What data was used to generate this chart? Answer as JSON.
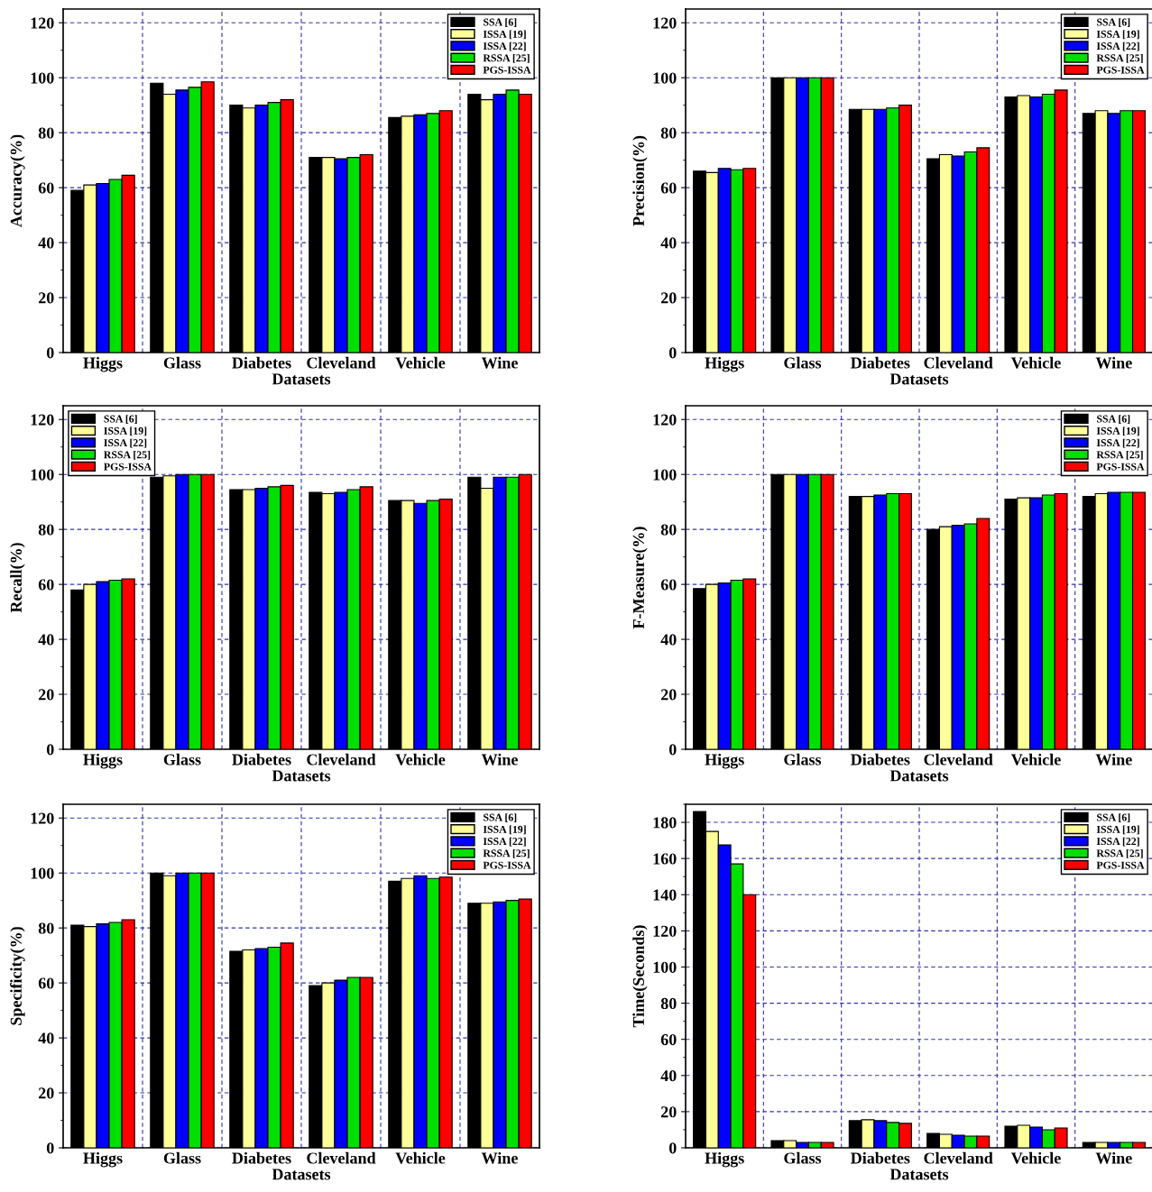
{
  "chart_data": [
    {
      "type": "bar",
      "xlabel": "Datasets",
      "ylabel": "Accuracy(%)",
      "categories": [
        "Higgs",
        "Glass",
        "Diabetes",
        "Cleveland",
        "Vehicle",
        "Wine"
      ],
      "ylim": [
        0,
        125
      ],
      "yticks": [
        0,
        20,
        40,
        60,
        80,
        100,
        120
      ],
      "grid": true,
      "legend": "top right",
      "series": [
        {
          "name": "SSA [6]",
          "color": "#000000",
          "values": [
            59,
            98,
            90,
            71,
            85.5,
            94
          ]
        },
        {
          "name": "ISSA [19]",
          "color": "#ffff99",
          "values": [
            61,
            94,
            89,
            71,
            86,
            92
          ]
        },
        {
          "name": "ISSA [22]",
          "color": "#0000ff",
          "values": [
            61.5,
            95.5,
            90,
            70.5,
            86.5,
            94
          ]
        },
        {
          "name": "RSSA [25]",
          "color": "#00e000",
          "values": [
            63,
            96.5,
            91,
            71,
            87,
            95.5
          ]
        },
        {
          "name": "PGS-ISSA",
          "color": "#ff0000",
          "values": [
            64.5,
            98.5,
            92,
            72,
            88,
            94
          ]
        }
      ]
    },
    {
      "type": "bar",
      "xlabel": "Datasets",
      "ylabel": "Precision(%)",
      "categories": [
        "Higgs",
        "Glass",
        "Diabetes",
        "Cleveland",
        "Vehicle",
        "Wine"
      ],
      "ylim": [
        0,
        125
      ],
      "yticks": [
        0,
        20,
        40,
        60,
        80,
        100,
        120
      ],
      "grid": true,
      "legend": "top right",
      "series": [
        {
          "name": "SSA [6]",
          "color": "#000000",
          "values": [
            66,
            100,
            88.5,
            70.5,
            93,
            87
          ]
        },
        {
          "name": "ISSA [19]",
          "color": "#ffff99",
          "values": [
            65.5,
            100,
            88.5,
            72,
            93.5,
            88
          ]
        },
        {
          "name": "ISSA [22]",
          "color": "#0000ff",
          "values": [
            67,
            100,
            88.5,
            71.5,
            93,
            87
          ]
        },
        {
          "name": "RSSA [25]",
          "color": "#00e000",
          "values": [
            66.5,
            100,
            89,
            73,
            94,
            88
          ]
        },
        {
          "name": "PGS-ISSA",
          "color": "#ff0000",
          "values": [
            67,
            100,
            90,
            74.5,
            95.5,
            88
          ]
        }
      ]
    },
    {
      "type": "bar",
      "xlabel": "Datasets",
      "ylabel": "Recall(%)",
      "categories": [
        "Higgs",
        "Glass",
        "Diabetes",
        "Cleveland",
        "Vehicle",
        "Wine"
      ],
      "ylim": [
        0,
        125
      ],
      "yticks": [
        0,
        20,
        40,
        60,
        80,
        100,
        120
      ],
      "grid": true,
      "legend": "top left",
      "series": [
        {
          "name": "SSA [6]",
          "color": "#000000",
          "values": [
            58,
            99,
            94.5,
            93.5,
            90.5,
            99
          ]
        },
        {
          "name": "ISSA [19]",
          "color": "#ffff99",
          "values": [
            60,
            99.5,
            94.5,
            93,
            90.5,
            95
          ]
        },
        {
          "name": "ISSA [22]",
          "color": "#0000ff",
          "values": [
            61,
            100,
            95,
            93.5,
            89.5,
            99
          ]
        },
        {
          "name": "RSSA [25]",
          "color": "#00e000",
          "values": [
            61.5,
            100,
            95.5,
            94.5,
            90.5,
            99
          ]
        },
        {
          "name": "PGS-ISSA",
          "color": "#ff0000",
          "values": [
            62,
            100,
            96,
            95.5,
            91,
            100
          ]
        }
      ]
    },
    {
      "type": "bar",
      "xlabel": "Datasets",
      "ylabel": "F-Measure(%)",
      "categories": [
        "Higgs",
        "Glass",
        "Diabetes",
        "Cleveland",
        "Vehicle",
        "Wine"
      ],
      "ylim": [
        0,
        125
      ],
      "yticks": [
        0,
        20,
        40,
        60,
        80,
        100,
        120
      ],
      "grid": true,
      "legend": "top right",
      "series": [
        {
          "name": "SSA [6]",
          "color": "#000000",
          "values": [
            58.5,
            100,
            92,
            80,
            91,
            92
          ]
        },
        {
          "name": "ISSA [19]",
          "color": "#ffff99",
          "values": [
            60,
            100,
            92,
            81,
            91.5,
            93
          ]
        },
        {
          "name": "ISSA [22]",
          "color": "#0000ff",
          "values": [
            60.5,
            100,
            92.5,
            81.5,
            91.5,
            93.5
          ]
        },
        {
          "name": "RSSA [25]",
          "color": "#00e000",
          "values": [
            61.5,
            100,
            93,
            82,
            92.5,
            93.5
          ]
        },
        {
          "name": "PGS-ISSA",
          "color": "#ff0000",
          "values": [
            62,
            100,
            93,
            84,
            93,
            93.5
          ]
        }
      ]
    },
    {
      "type": "bar",
      "xlabel": "Datasets",
      "ylabel": "Specificity(%)",
      "categories": [
        "Higgs",
        "Glass",
        "Diabetes",
        "Cleveland",
        "Vehicle",
        "Wine"
      ],
      "ylim": [
        0,
        125
      ],
      "yticks": [
        0,
        20,
        40,
        60,
        80,
        100,
        120
      ],
      "grid": true,
      "legend": "top right",
      "series": [
        {
          "name": "SSA [6]",
          "color": "#000000",
          "values": [
            81,
            100,
            71.5,
            59,
            97,
            89
          ]
        },
        {
          "name": "ISSA [19]",
          "color": "#ffff99",
          "values": [
            80.5,
            99,
            72,
            60,
            98,
            89
          ]
        },
        {
          "name": "ISSA [22]",
          "color": "#0000ff",
          "values": [
            81.5,
            100,
            72.5,
            61,
            99,
            89.5
          ]
        },
        {
          "name": "RSSA [25]",
          "color": "#00e000",
          "values": [
            82,
            100,
            73,
            62,
            98,
            90
          ]
        },
        {
          "name": "PGS-ISSA",
          "color": "#ff0000",
          "values": [
            83,
            100,
            74.5,
            62,
            98.5,
            90.5
          ]
        }
      ]
    },
    {
      "type": "bar",
      "xlabel": "Datasets",
      "ylabel": "Time(Seconds)",
      "categories": [
        "Higgs",
        "Glass",
        "Diabetes",
        "Cleveland",
        "Vehicle",
        "Wine"
      ],
      "ylim": [
        0,
        190
      ],
      "yticks": [
        0,
        20,
        40,
        60,
        80,
        100,
        120,
        140,
        160,
        180
      ],
      "grid": true,
      "legend": "top right",
      "series": [
        {
          "name": "SSA [6]",
          "color": "#000000",
          "values": [
            186,
            4,
            15,
            8,
            12,
            3
          ]
        },
        {
          "name": "ISSA [19]",
          "color": "#ffff99",
          "values": [
            175,
            4,
            15.5,
            7.5,
            12.5,
            3
          ]
        },
        {
          "name": "ISSA [22]",
          "color": "#0000ff",
          "values": [
            167.5,
            3,
            15,
            7,
            11.5,
            3
          ]
        },
        {
          "name": "RSSA [25]",
          "color": "#00e000",
          "values": [
            157,
            3,
            14,
            6.5,
            10,
            3
          ]
        },
        {
          "name": "PGS-ISSA",
          "color": "#ff0000",
          "values": [
            140,
            3,
            13.5,
            6.5,
            11,
            3
          ]
        }
      ]
    }
  ]
}
